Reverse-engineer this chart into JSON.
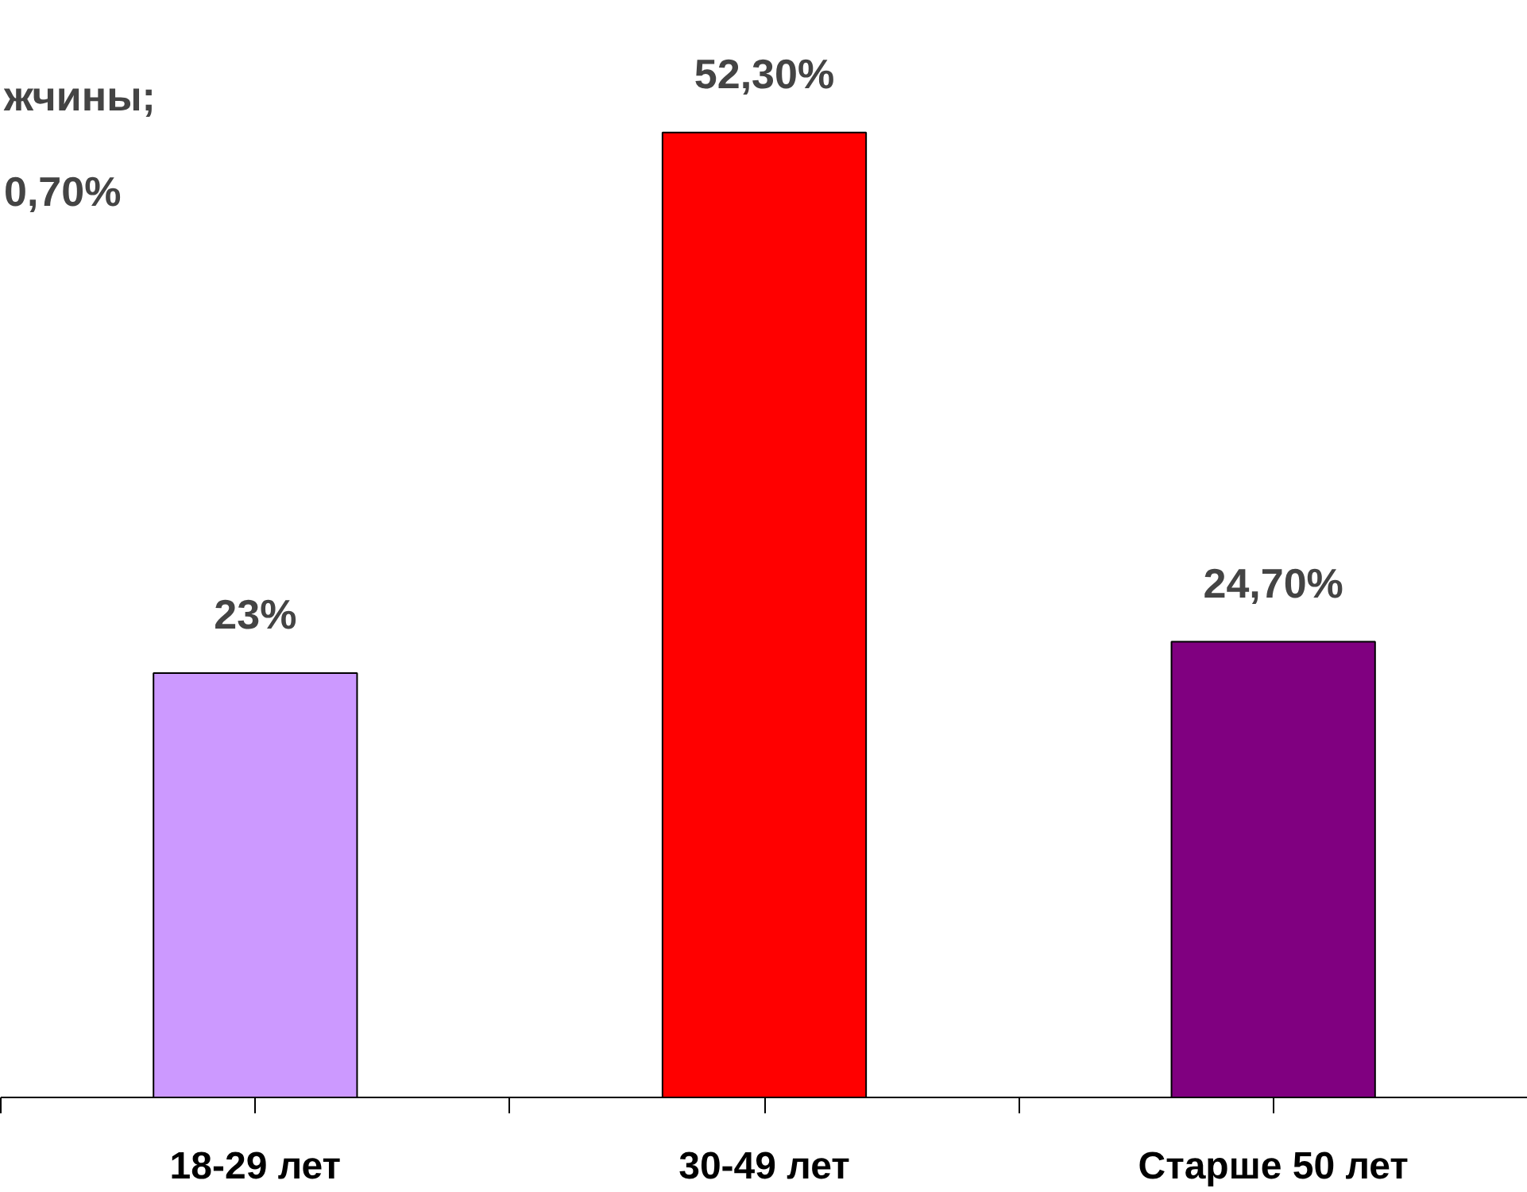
{
  "chart_data": {
    "type": "bar",
    "categories": [
      "18-29 лет",
      "30-49 лет",
      "Старше 50 лет"
    ],
    "values": [
      23,
      52.3,
      24.7
    ],
    "colors": [
      "#cc99ff",
      "#ff0000",
      "#800080"
    ],
    "value_labels": [
      "23%",
      "52,30%",
      "24,70%"
    ],
    "annotations": [
      "жчины;",
      "0,70%"
    ],
    "grid": false
  }
}
